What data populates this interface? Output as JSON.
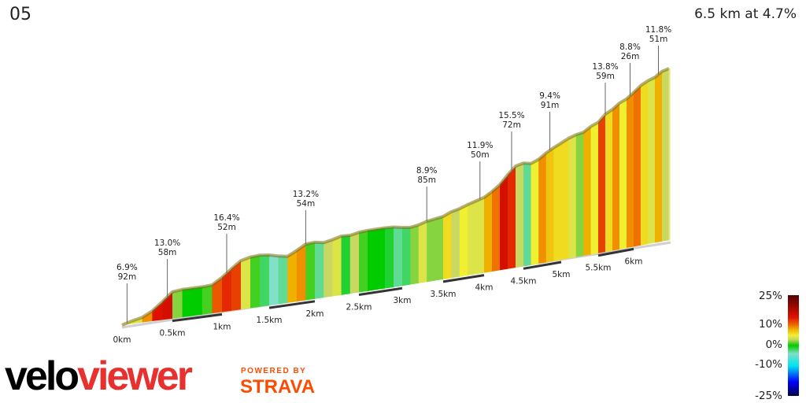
{
  "header": {
    "title": "05",
    "summary": "6.5 km at 4.7%"
  },
  "branding": {
    "logo_part1": "velo",
    "logo_part2": "viewer",
    "powered_by": "POWERED BY",
    "strava": "STRAVA"
  },
  "chart_data": {
    "type": "area",
    "title": "",
    "xlabel": "",
    "ylabel": "",
    "total_distance_km": 6.5,
    "avg_gradient_pct": 4.7,
    "segment_length_km": 0.1,
    "gradients_pct": [
      5,
      4,
      9,
      14,
      15,
      2,
      0,
      0,
      1,
      11,
      13,
      12,
      4,
      1,
      -2,
      -4,
      -3,
      8,
      9,
      1,
      -3,
      3,
      4,
      -1,
      3,
      1,
      0,
      0,
      -1,
      -3,
      -2,
      2,
      4,
      2,
      2,
      6,
      3,
      5,
      4,
      4,
      8,
      10,
      15,
      13,
      3,
      -3,
      5,
      9,
      7,
      6,
      6,
      4,
      2,
      8,
      5,
      12,
      6,
      9,
      5,
      9,
      10,
      6,
      4,
      8,
      3
    ],
    "x_ticks": [
      "0km",
      "0.5km",
      "1km",
      "1.5km",
      "2km",
      "2.5km",
      "3km",
      "3.5km",
      "4km",
      "4.5km",
      "5km",
      "5.5km",
      "6km"
    ],
    "annotations": [
      {
        "km": 0.05,
        "gradient": "6.9%",
        "length": "92m"
      },
      {
        "km": 0.45,
        "gradient": "13.0%",
        "length": "58m"
      },
      {
        "km": 1.05,
        "gradient": "16.4%",
        "length": "52m"
      },
      {
        "km": 1.9,
        "gradient": "13.2%",
        "length": "54m"
      },
      {
        "km": 3.3,
        "gradient": "8.9%",
        "length": "85m"
      },
      {
        "km": 3.95,
        "gradient": "11.9%",
        "length": "50m"
      },
      {
        "km": 4.35,
        "gradient": "15.5%",
        "length": "72m"
      },
      {
        "km": 4.85,
        "gradient": "9.4%",
        "length": "91m"
      },
      {
        "km": 5.6,
        "gradient": "13.8%",
        "length": "59m"
      },
      {
        "km": 5.95,
        "gradient": "8.8%",
        "length": "26m"
      },
      {
        "km": 6.35,
        "gradient": "11.8%",
        "length": "51m"
      }
    ],
    "color_scale": {
      "labels": [
        "25%",
        "10%",
        "0%",
        "-10%",
        "-25%"
      ],
      "stops": [
        [
          -25,
          "#00004a"
        ],
        [
          -18,
          "#0000ff"
        ],
        [
          -10,
          "#00e5ee"
        ],
        [
          -4,
          "#80e0c8"
        ],
        [
          0,
          "#00cc00"
        ],
        [
          3,
          "#c8d860"
        ],
        [
          5,
          "#f0f030"
        ],
        [
          8,
          "#f0b000"
        ],
        [
          10,
          "#f07000"
        ],
        [
          14,
          "#e01000"
        ],
        [
          25,
          "#500000"
        ]
      ]
    }
  }
}
